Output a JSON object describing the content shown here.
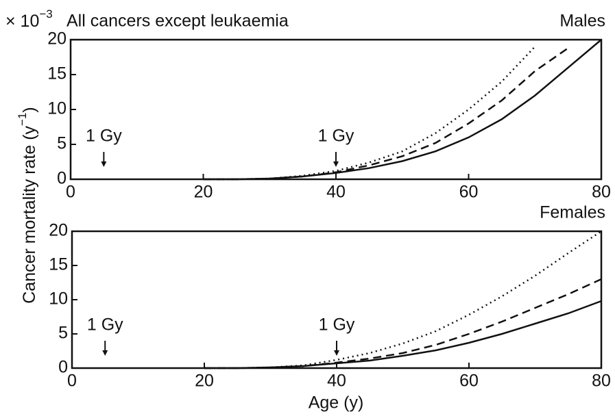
{
  "unit_label": {
    "base": "× 10",
    "exponent": "−3"
  },
  "ylabel": {
    "base": "Cancer mortality rate (y",
    "exponent": "−1",
    "end": ")"
  },
  "xlabel": "Age (y)",
  "chart_data": [
    {
      "type": "line",
      "title": "All cancers except leukaemia",
      "panel_label": "Males",
      "x": [
        20,
        25,
        30,
        35,
        40,
        45,
        50,
        55,
        60,
        65,
        70,
        75,
        80
      ],
      "xlim": [
        0,
        80
      ],
      "xticks": [
        0,
        20,
        40,
        60,
        80
      ],
      "ylim": [
        0,
        20
      ],
      "yticks": [
        0,
        5,
        10,
        15,
        20
      ],
      "series": [
        {
          "style": "solid",
          "color": "#111111",
          "values": [
            0,
            0,
            0.1,
            0.4,
            0.9,
            1.6,
            2.6,
            4.0,
            6.0,
            8.6,
            12,
            16,
            20
          ]
        },
        {
          "style": "dashed",
          "color": "#111111",
          "values": [
            0,
            0,
            0.1,
            0.4,
            1.0,
            2.0,
            3.3,
            5.2,
            8.0,
            11.3,
            15.5,
            18.8,
            null
          ]
        },
        {
          "style": "dotted",
          "color": "#111111",
          "values": [
            0,
            0,
            0.1,
            0.5,
            1.2,
            2.4,
            4.0,
            6.6,
            10,
            14,
            19,
            null,
            null
          ]
        }
      ],
      "annotations": [
        {
          "text": "1 Gy",
          "x": 5
        },
        {
          "text": "1 Gy",
          "x": 40
        }
      ]
    },
    {
      "type": "line",
      "panel_label": "Females",
      "x": [
        20,
        25,
        30,
        35,
        40,
        45,
        50,
        55,
        60,
        65,
        70,
        75,
        80
      ],
      "xlim": [
        0,
        80
      ],
      "xticks": [
        0,
        20,
        40,
        60,
        80
      ],
      "ylim": [
        0,
        20
      ],
      "yticks": [
        0,
        5,
        10,
        15,
        20
      ],
      "series": [
        {
          "style": "solid",
          "color": "#111111",
          "values": [
            0,
            0,
            0.1,
            0.3,
            0.7,
            1.1,
            1.8,
            2.6,
            3.7,
            5.0,
            6.5,
            8.0,
            9.8
          ]
        },
        {
          "style": "dashed",
          "color": "#111111",
          "values": [
            0,
            0,
            0.1,
            0.3,
            0.8,
            1.4,
            2.2,
            3.4,
            5.0,
            6.8,
            8.8,
            10.8,
            13
          ]
        },
        {
          "style": "dotted",
          "color": "#111111",
          "values": [
            0,
            0,
            0.1,
            0.4,
            1.2,
            2.2,
            3.6,
            5.4,
            7.8,
            10.5,
            13.5,
            16.8,
            20
          ]
        }
      ],
      "annotations": [
        {
          "text": "1 Gy",
          "x": 5
        },
        {
          "text": "1 Gy",
          "x": 40
        }
      ]
    }
  ]
}
